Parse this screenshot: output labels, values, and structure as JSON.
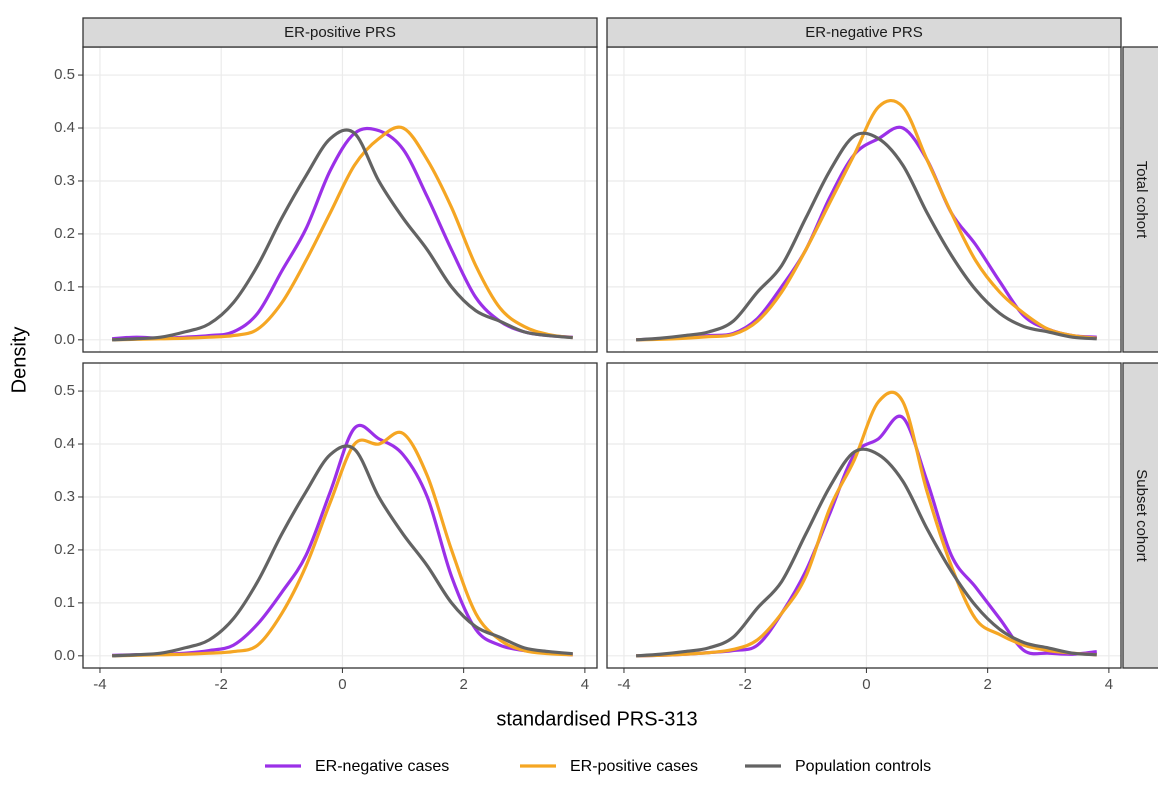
{
  "chart_data": {
    "type": "line",
    "columns": [
      "ER-positive PRS",
      "ER-negative PRS"
    ],
    "rows": [
      "Total cohort",
      "Subset cohort"
    ],
    "xlabel": "standardised PRS-313",
    "ylabel": "Density",
    "xlim": [
      -4.28,
      4.2
    ],
    "ylim": [
      -0.023,
      0.553
    ],
    "xticks": [
      -4,
      -2,
      0,
      2,
      4
    ],
    "yticks": [
      {
        "value": 0,
        "label": "0.0"
      },
      0.1,
      0.2,
      0.3,
      0.4,
      0.5
    ],
    "grid": true,
    "legend": "bottom",
    "series": [
      {
        "name": "ER-negative cases",
        "color": "#9b30e8"
      },
      {
        "name": "ER-positive cases",
        "color": "#f5a623"
      },
      {
        "name": "Population controls",
        "color": "#636363"
      }
    ],
    "x": [
      -3.8,
      -3.4,
      -3.0,
      -2.6,
      -2.2,
      -1.8,
      -1.4,
      -1.0,
      -0.6,
      -0.2,
      0.2,
      0.6,
      1.0,
      1.4,
      1.8,
      2.2,
      2.6,
      3.0,
      3.4,
      3.8
    ],
    "panels": [
      {
        "series": [
          {
            "values": [
              0.002,
              0.005,
              0.003,
              0.005,
              0.008,
              0.015,
              0.05,
              0.13,
              0.21,
              0.32,
              0.39,
              0.395,
              0.36,
              0.27,
              0.17,
              0.08,
              0.035,
              0.015,
              0.008,
              0.005
            ]
          },
          {
            "values": [
              0,
              0.001,
              0.002,
              0.003,
              0.005,
              0.008,
              0.02,
              0.07,
              0.15,
              0.24,
              0.33,
              0.38,
              0.4,
              0.34,
              0.25,
              0.14,
              0.06,
              0.025,
              0.01,
              0.004
            ]
          },
          {
            "values": [
              0,
              0.002,
              0.005,
              0.015,
              0.03,
              0.07,
              0.14,
              0.23,
              0.31,
              0.38,
              0.39,
              0.3,
              0.23,
              0.17,
              0.1,
              0.055,
              0.035,
              0.015,
              0.008,
              0.004
            ]
          }
        ]
      },
      {
        "series": [
          {
            "values": [
              0,
              0.002,
              0.004,
              0.008,
              0.012,
              0.04,
              0.1,
              0.17,
              0.27,
              0.35,
              0.38,
              0.4,
              0.34,
              0.24,
              0.18,
              0.11,
              0.045,
              0.02,
              0.008,
              0.005
            ]
          },
          {
            "values": [
              0,
              0.001,
              0.003,
              0.006,
              0.01,
              0.035,
              0.09,
              0.17,
              0.26,
              0.35,
              0.44,
              0.44,
              0.34,
              0.24,
              0.15,
              0.09,
              0.05,
              0.02,
              0.008,
              0.003
            ]
          },
          {
            "values": [
              0,
              0.003,
              0.008,
              0.015,
              0.035,
              0.09,
              0.14,
              0.23,
              0.32,
              0.385,
              0.38,
              0.33,
              0.24,
              0.16,
              0.095,
              0.05,
              0.025,
              0.015,
              0.005,
              0.002
            ]
          }
        ]
      },
      {
        "series": [
          {
            "values": [
              0.001,
              0.002,
              0.003,
              0.005,
              0.01,
              0.02,
              0.06,
              0.12,
              0.19,
              0.31,
              0.43,
              0.41,
              0.38,
              0.3,
              0.15,
              0.05,
              0.02,
              0.01,
              0.005,
              0.002
            ]
          },
          {
            "values": [
              0,
              0.001,
              0.002,
              0.003,
              0.005,
              0.008,
              0.02,
              0.08,
              0.17,
              0.29,
              0.4,
              0.4,
              0.42,
              0.34,
              0.2,
              0.08,
              0.03,
              0.01,
              0.004,
              0.002
            ]
          },
          {
            "values": [
              0,
              0.002,
              0.005,
              0.015,
              0.03,
              0.07,
              0.14,
              0.23,
              0.31,
              0.38,
              0.39,
              0.3,
              0.23,
              0.17,
              0.1,
              0.055,
              0.035,
              0.015,
              0.008,
              0.004
            ]
          }
        ]
      },
      {
        "series": [
          {
            "values": [
              0,
              0.001,
              0.003,
              0.006,
              0.01,
              0.02,
              0.08,
              0.16,
              0.27,
              0.38,
              0.41,
              0.45,
              0.33,
              0.19,
              0.13,
              0.07,
              0.01,
              0.005,
              0.003,
              0.008
            ]
          },
          {
            "values": [
              0,
              0.001,
              0.003,
              0.006,
              0.012,
              0.03,
              0.08,
              0.15,
              0.28,
              0.37,
              0.48,
              0.48,
              0.31,
              0.17,
              0.07,
              0.04,
              0.02,
              0.01,
              0.005,
              0.002
            ]
          },
          {
            "values": [
              0,
              0.003,
              0.008,
              0.015,
              0.035,
              0.09,
              0.14,
              0.23,
              0.32,
              0.385,
              0.38,
              0.33,
              0.24,
              0.16,
              0.095,
              0.05,
              0.025,
              0.015,
              0.005,
              0.002
            ]
          }
        ]
      }
    ]
  }
}
